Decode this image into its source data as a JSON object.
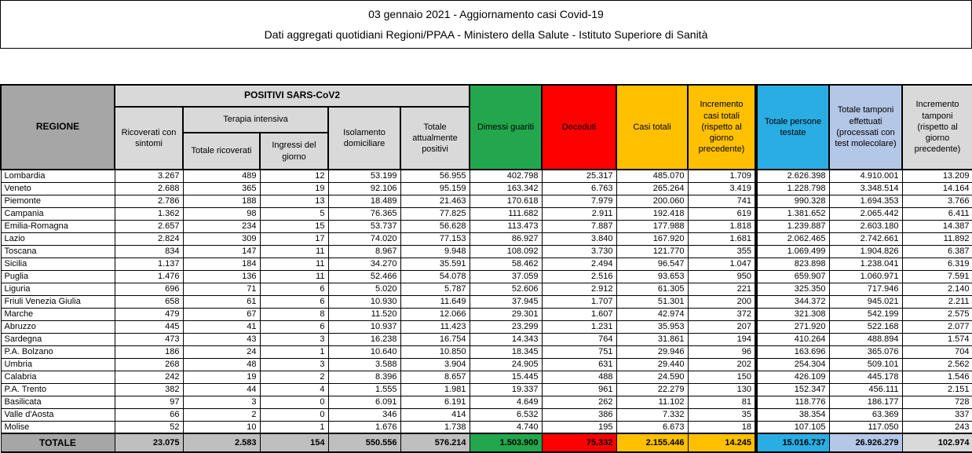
{
  "title": {
    "line1": "03 gennaio 2021 - Aggiornamento casi Covid-19",
    "line2": "Dati aggregati quotidiani Regioni/PPAA - Ministero della Salute - Istituto Superiore di Sanità"
  },
  "colors": {
    "green": "#22A74D",
    "red": "#FE0000",
    "yellow": "#FFC000",
    "cyan": "#29ADE3",
    "light_blue": "#B4C7E7",
    "light_gray": "#D9D9D9",
    "mid_gray": "#A6A6A6",
    "total_gray": "#BFBFBF"
  },
  "table": {
    "headers": {
      "regione": "REGIONE",
      "positivi_group": "POSITIVI SARS-CoV2",
      "ricoverati_sintomi": "Ricoverati con sintomi",
      "terapia_group": "Terapia intensiva",
      "totale_ricoverati": "Totale ricoverati",
      "ingressi_giorno": "Ingressi del giorno",
      "isolamento": "Isolamento domiciliare",
      "attualmente_positivi": "Totale attualmente positivi",
      "dimessi": "Dimessi guariti",
      "deceduti": "Deceduti",
      "casi_totali": "Casi totali",
      "incremento_casi": "Incremento casi totali (rispetto al giorno precedente)",
      "persone_testate": "Totale persone testate",
      "tamponi": "Totale tamponi effettuati (processati con test molecolare)",
      "incremento_tamponi": "Incremento tamponi (rispetto al giorno precedente)"
    },
    "rows": [
      {
        "regione": "Lombardia",
        "values": [
          "3.267",
          "489",
          "12",
          "53.199",
          "56.955",
          "402.798",
          "25.317",
          "485.070",
          "1.709",
          "2.626.398",
          "4.910.001",
          "13.209"
        ]
      },
      {
        "regione": "Veneto",
        "values": [
          "2.688",
          "365",
          "19",
          "92.106",
          "95.159",
          "163.342",
          "6.763",
          "265.264",
          "3.419",
          "1.228.798",
          "3.348.514",
          "14.164"
        ]
      },
      {
        "regione": "Piemonte",
        "values": [
          "2.786",
          "188",
          "13",
          "18.489",
          "21.463",
          "170.618",
          "7.979",
          "200.060",
          "741",
          "990.328",
          "1.694.353",
          "3.766"
        ]
      },
      {
        "regione": "Campania",
        "values": [
          "1.362",
          "98",
          "5",
          "76.365",
          "77.825",
          "111.682",
          "2.911",
          "192.418",
          "619",
          "1.381.652",
          "2.065.442",
          "6.411"
        ]
      },
      {
        "regione": "Emilia-Romagna",
        "values": [
          "2.657",
          "234",
          "15",
          "53.737",
          "56.628",
          "113.473",
          "7.887",
          "177.988",
          "1.818",
          "1.239.887",
          "2.603.180",
          "14.387"
        ]
      },
      {
        "regione": "Lazio",
        "values": [
          "2.824",
          "309",
          "17",
          "74.020",
          "77.153",
          "86.927",
          "3.840",
          "167.920",
          "1.681",
          "2.062.465",
          "2.742.661",
          "11.892"
        ]
      },
      {
        "regione": "Toscana",
        "values": [
          "834",
          "147",
          "11",
          "8.967",
          "9.948",
          "108.092",
          "3.730",
          "121.770",
          "355",
          "1.069.499",
          "1.904.826",
          "6.387"
        ]
      },
      {
        "regione": "Sicilia",
        "values": [
          "1.137",
          "184",
          "11",
          "34.270",
          "35.591",
          "58.462",
          "2.494",
          "96.547",
          "1.047",
          "823.898",
          "1.238.041",
          "6.319"
        ]
      },
      {
        "regione": "Puglia",
        "values": [
          "1.476",
          "136",
          "11",
          "52.466",
          "54.078",
          "37.059",
          "2.516",
          "93.653",
          "950",
          "659.907",
          "1.060.971",
          "7.591"
        ]
      },
      {
        "regione": "Liguria",
        "values": [
          "696",
          "71",
          "6",
          "5.020",
          "5.787",
          "52.606",
          "2.912",
          "61.305",
          "221",
          "325.350",
          "717.946",
          "2.140"
        ]
      },
      {
        "regione": "Friuli Venezia Giulia",
        "values": [
          "658",
          "61",
          "6",
          "10.930",
          "11.649",
          "37.945",
          "1.707",
          "51.301",
          "200",
          "344.372",
          "945.021",
          "2.211"
        ]
      },
      {
        "regione": "Marche",
        "values": [
          "479",
          "67",
          "8",
          "11.520",
          "12.066",
          "29.301",
          "1.607",
          "42.974",
          "372",
          "321.308",
          "542.199",
          "2.575"
        ]
      },
      {
        "regione": "Abruzzo",
        "values": [
          "445",
          "41",
          "6",
          "10.937",
          "11.423",
          "23.299",
          "1.231",
          "35.953",
          "207",
          "271.920",
          "522.168",
          "2.077"
        ]
      },
      {
        "regione": "Sardegna",
        "values": [
          "473",
          "43",
          "3",
          "16.238",
          "16.754",
          "14.343",
          "764",
          "31.861",
          "194",
          "410.264",
          "488.894",
          "1.574"
        ]
      },
      {
        "regione": "P.A. Bolzano",
        "values": [
          "186",
          "24",
          "1",
          "10.640",
          "10.850",
          "18.345",
          "751",
          "29.946",
          "96",
          "163.696",
          "365.076",
          "704"
        ]
      },
      {
        "regione": "Umbria",
        "values": [
          "268",
          "48",
          "3",
          "3.588",
          "3.904",
          "24.905",
          "631",
          "29.440",
          "202",
          "254.304",
          "509.101",
          "2.562"
        ]
      },
      {
        "regione": "Calabria",
        "values": [
          "242",
          "19",
          "2",
          "8.396",
          "8.657",
          "15.445",
          "488",
          "24.590",
          "150",
          "426.109",
          "445.178",
          "1.546"
        ]
      },
      {
        "regione": "P.A. Trento",
        "values": [
          "382",
          "44",
          "4",
          "1.555",
          "1.981",
          "19.337",
          "961",
          "22.279",
          "130",
          "152.347",
          "456.111",
          "2.151"
        ]
      },
      {
        "regione": "Basilicata",
        "values": [
          "97",
          "3",
          "0",
          "6.091",
          "6.191",
          "4.649",
          "262",
          "11.102",
          "81",
          "118.776",
          "186.177",
          "728"
        ]
      },
      {
        "regione": "Valle d'Aosta",
        "values": [
          "66",
          "2",
          "0",
          "346",
          "414",
          "6.532",
          "386",
          "7.332",
          "35",
          "38.354",
          "63.369",
          "337"
        ]
      },
      {
        "regione": "Molise",
        "values": [
          "52",
          "10",
          "1",
          "1.676",
          "1.738",
          "4.740",
          "195",
          "6.673",
          "18",
          "107.105",
          "117.050",
          "243"
        ]
      }
    ],
    "totale": {
      "label": "TOTALE",
      "values": [
        "23.075",
        "2.583",
        "154",
        "550.556",
        "576.214",
        "1.503.900",
        "75.332",
        "2.155.446",
        "14.245",
        "15.016.737",
        "26.926.279",
        "102.974"
      ]
    }
  }
}
